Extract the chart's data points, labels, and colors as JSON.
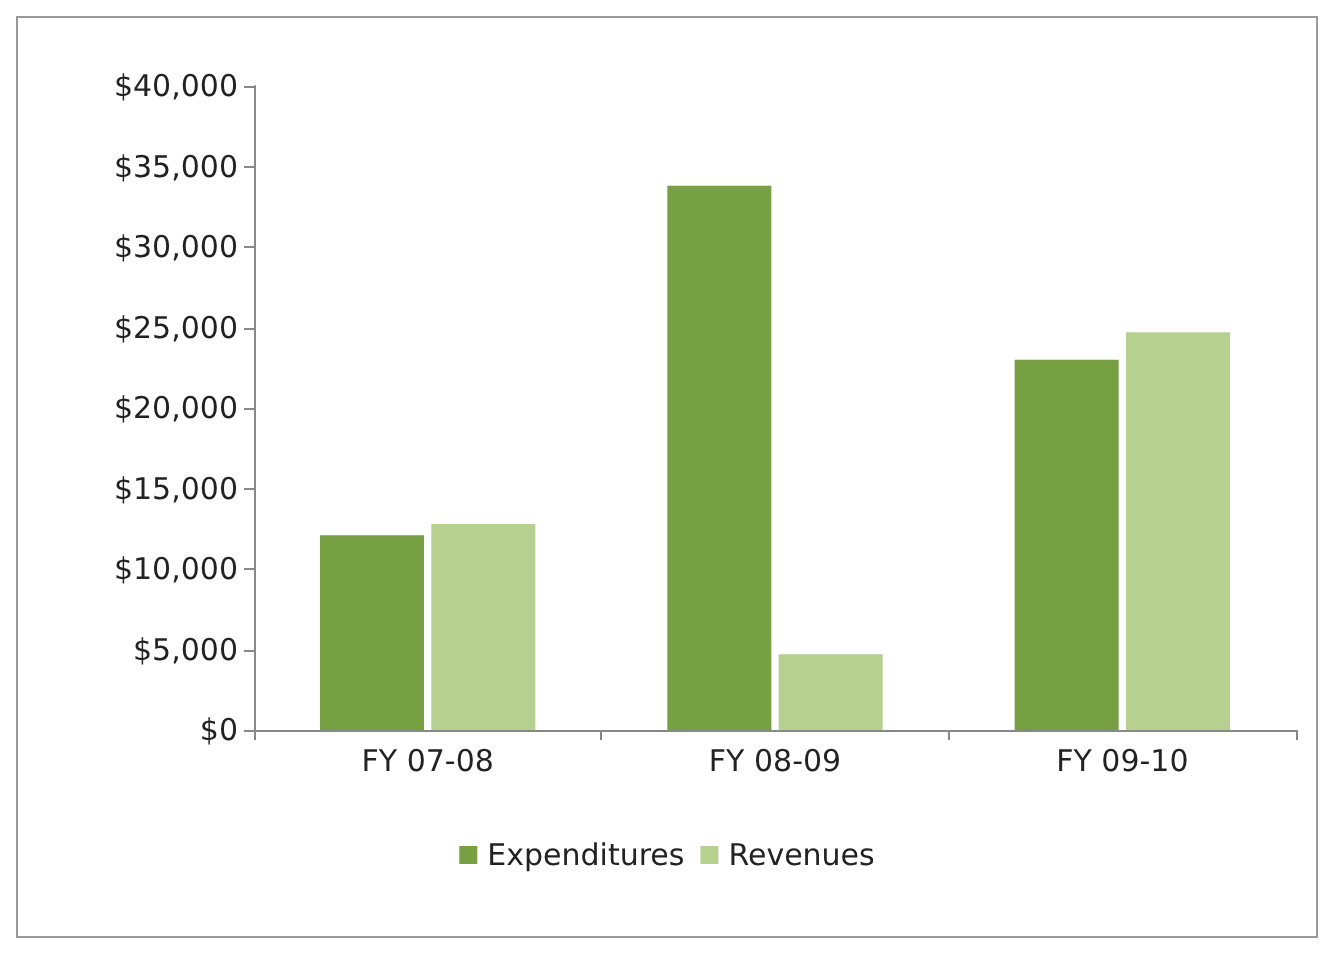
{
  "chart_data": {
    "type": "bar",
    "categories": [
      "FY 07-08",
      "FY 08-09",
      "FY 09-10"
    ],
    "series": [
      {
        "name": "Expenditures",
        "color": "#77a043",
        "values": [
          12100,
          33800,
          23000
        ]
      },
      {
        "name": "Revenues",
        "color": "#b6d08f",
        "values": [
          12800,
          4700,
          24700
        ]
      }
    ],
    "ylim": [
      0,
      40000
    ],
    "yticks": [
      {
        "value": 0,
        "label": "$0"
      },
      {
        "value": 5000,
        "label": "$5,000"
      },
      {
        "value": 10000,
        "label": "$10,000"
      },
      {
        "value": 15000,
        "label": "$15,000"
      },
      {
        "value": 20000,
        "label": "$20,000"
      },
      {
        "value": 25000,
        "label": "$25,000"
      },
      {
        "value": 30000,
        "label": "$30,000"
      },
      {
        "value": 35000,
        "label": "$35,000"
      },
      {
        "value": 40000,
        "label": "$40,000"
      }
    ],
    "grid": false,
    "legend": "bottom"
  }
}
